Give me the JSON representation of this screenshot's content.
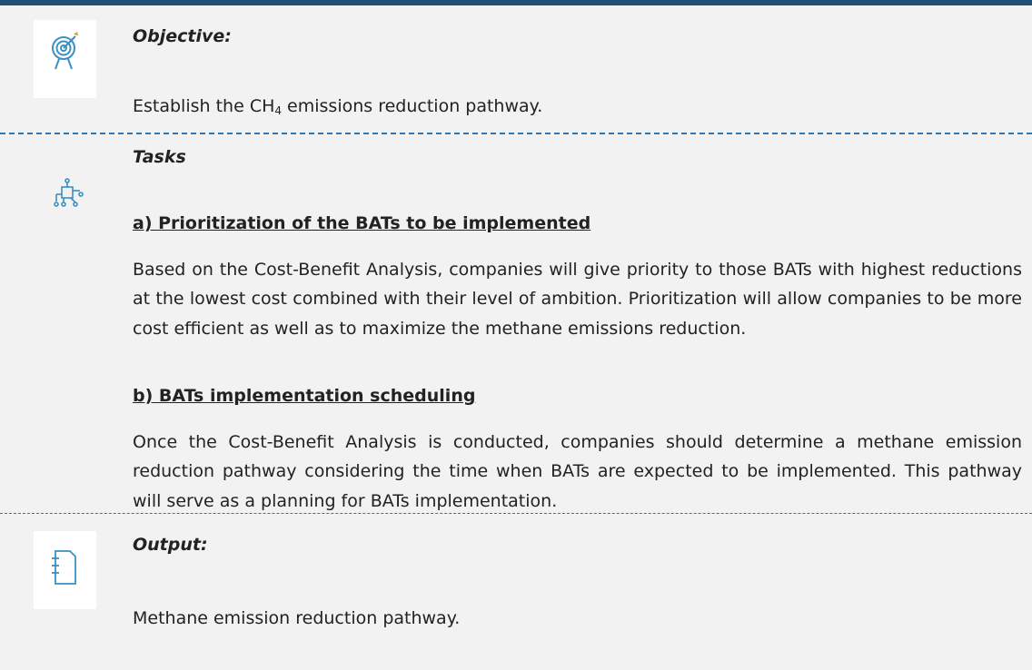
{
  "objective": {
    "heading": "Objective:",
    "text_before": "Establish the CH",
    "subscript": "4",
    "text_after": " emissions reduction pathway."
  },
  "tasks": {
    "heading": "Tasks",
    "items": [
      {
        "title": "a) Prioritization of the BATs to be implemented",
        "text": "Based on the Cost-Benefit Analysis, companies will give priority to those BATs with highest reductions at the lowest cost combined with their level of ambition. Prioritization will allow companies to be more cost efficient as well as to maximize the methane emissions reduction."
      },
      {
        "title": "b) BATs implementation scheduling",
        "text": "Once the Cost-Benefit Analysis is conducted, companies should determine a methane emission reduction pathway considering the time when BATs are expected to be implemented. This pathway will serve as a planning for BATs implementation."
      }
    ]
  },
  "output": {
    "heading": "Output:",
    "text": "Methane emission reduction pathway."
  }
}
